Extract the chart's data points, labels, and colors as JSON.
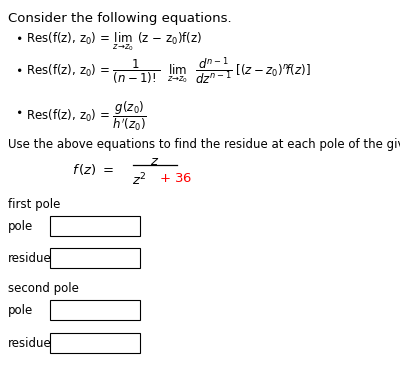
{
  "title": "Consider the following equations.",
  "instruction": "Use the above equations to find the residue at each pole of the given function.",
  "section1": "first pole",
  "section2": "second pole",
  "label_pole": "pole",
  "label_residue": "residue",
  "func_den_color": "#FF0000",
  "box_color": "#000000",
  "bg_color": "#ffffff",
  "text_color": "#000000",
  "font_size_title": 9.5,
  "font_size_body": 8.5,
  "font_size_math": 8.5
}
